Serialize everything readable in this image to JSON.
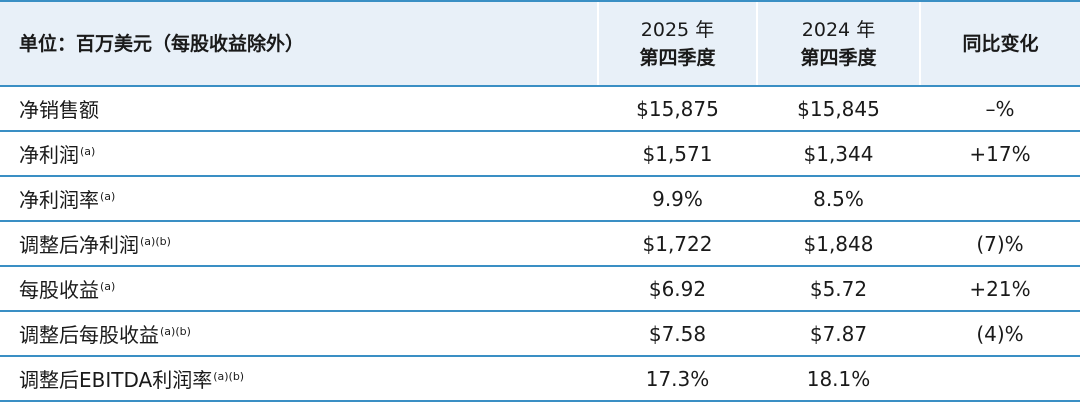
{
  "table": {
    "header": {
      "label": "单位：百万美元（每股收益除外）",
      "col_2025_year": "2025 年",
      "col_2025_quarter": "第四季度",
      "col_2024_year": "2024 年",
      "col_2024_quarter": "第四季度",
      "col_change": "同比变化"
    },
    "rows": [
      {
        "label": "净销售额",
        "note": "",
        "v2025": "$15,875",
        "v2024": "$15,845",
        "change": "–%"
      },
      {
        "label": "净利润",
        "note": "(a)",
        "v2025": "$1,571",
        "v2024": "$1,344",
        "change": "+17%"
      },
      {
        "label": "净利润率",
        "note": "(a)",
        "v2025": "9.9%",
        "v2024": "8.5%",
        "change": ""
      },
      {
        "label": "调整后净利润",
        "note": "(a)(b)",
        "v2025": "$1,722",
        "v2024": "$1,848",
        "change": "(7)%"
      },
      {
        "label": "每股收益",
        "note": "(a)",
        "v2025": "$6.92",
        "v2024": "$5.72",
        "change": "+21%"
      },
      {
        "label": "调整后每股收益",
        "note": "(a)(b)",
        "v2025": "$7.58",
        "v2024": "$7.87",
        "change": "(4)%"
      },
      {
        "label": "调整后EBITDA利润率",
        "note": "(a)(b)",
        "v2025": "17.3%",
        "v2024": "18.1%",
        "change": ""
      }
    ]
  }
}
